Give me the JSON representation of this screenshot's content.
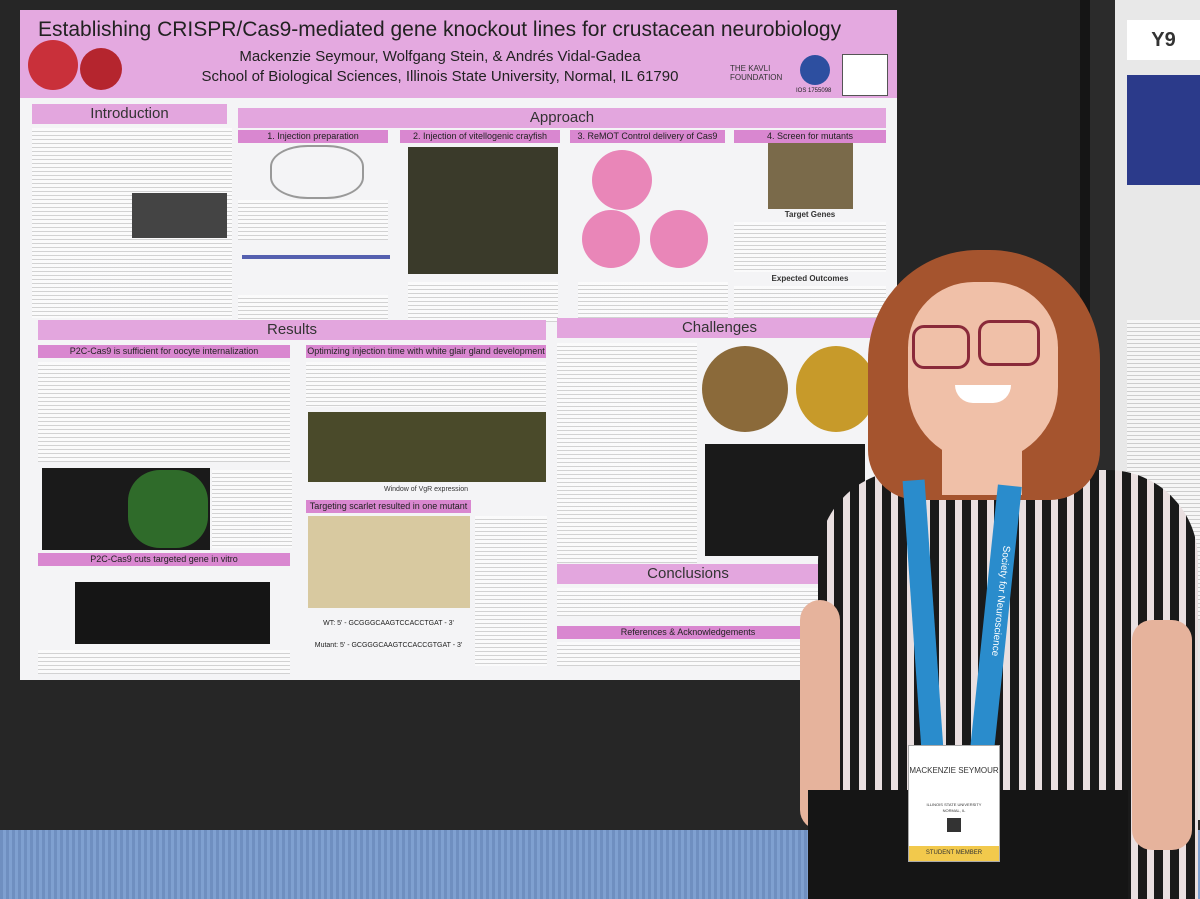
{
  "booth": "Y9",
  "poster": {
    "title": "Establishing CRISPR/Cas9-mediated gene knockout lines for crustacean neurobiology",
    "authors": "Mackenzie Seymour, Wolfgang Stein, & Andrés Vidal-Gadea",
    "affiliation": "School of Biological Sciences, Illinois State University, Normal, IL 61790",
    "sponsor": "THE KAVLI FOUNDATION",
    "grant": "IOS 1755098",
    "sections": {
      "introduction": "Introduction",
      "approach": "Approach",
      "results": "Results",
      "challenges": "Challenges",
      "conclusions": "Conclusions",
      "references": "References & Acknowledgements"
    },
    "approach_steps": [
      "1. Injection preparation",
      "2. Injection of vitellogenic crayfish",
      "3. ReMOT Control delivery of Cas9",
      "4. Screen for mutants"
    ],
    "results_panels": [
      "P2C-Cas9 is sufficient for oocyte internalization",
      "Optimizing injection time with white glair gland development",
      "P2C-Cas9 cuts targeted gene in vitro",
      "Targeting scarlet resulted in one mutant"
    ],
    "figure_labels": [
      "Target Genes",
      "Expected Outcomes",
      "Window of VgR expression"
    ],
    "sequences": [
      "WT: 5' - GCGGGCAAGTCCACCTGAT - 3'",
      "Mutant: 5' - GCGGGCAAGTCCACCGTGAT - 3'"
    ]
  },
  "badge": {
    "name": "MACKENZIE SEYMOUR",
    "institution": "ILLINOIS STATE UNIVERSITY",
    "location": "NORMAL, IL",
    "type": "STUDENT MEMBER"
  },
  "lanyard": "Society for Neuroscience"
}
